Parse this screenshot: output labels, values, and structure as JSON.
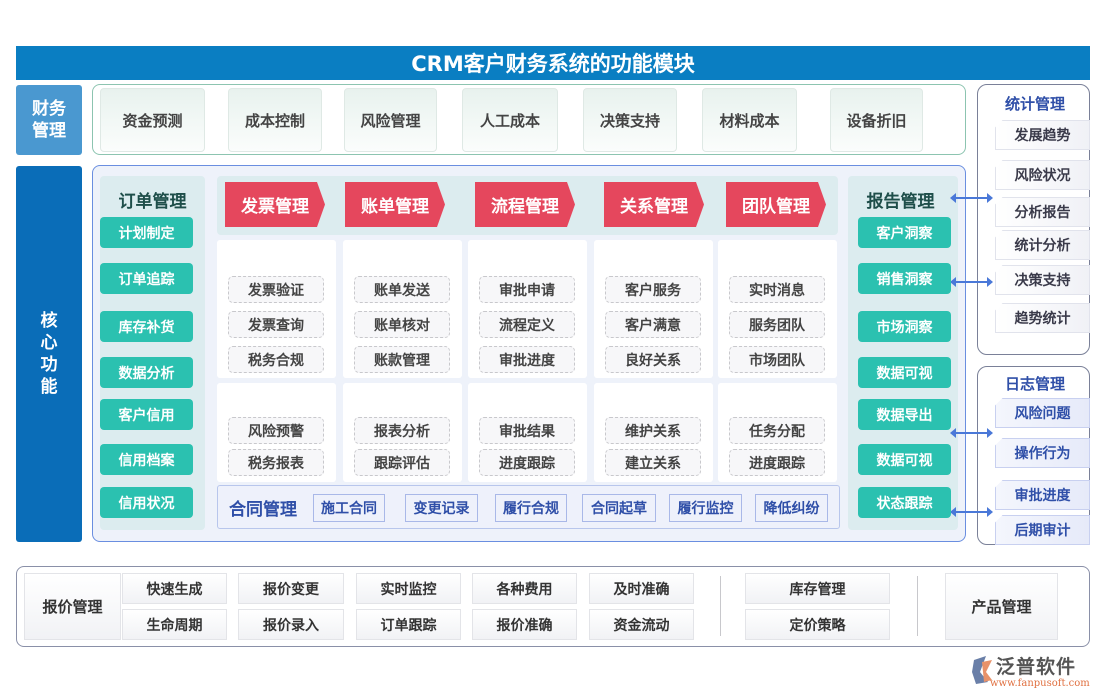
{
  "title": "CRM客户财务系统的功能模块",
  "left_labels": {
    "finance": "财务管理",
    "core": "核心功能"
  },
  "finance_items": [
    "资金预测",
    "成本控制",
    "风险管理",
    "人工成本",
    "决策支持",
    "材料成本",
    "设备折旧"
  ],
  "order": {
    "title": "订单管理",
    "items": [
      "计划制定",
      "订单追踪",
      "库存补货",
      "数据分析",
      "客户信用",
      "信用档案",
      "信用状况"
    ]
  },
  "headers": [
    "发票管理",
    "账单管理",
    "流程管理",
    "关系管理",
    "团队管理"
  ],
  "grid_top": [
    [
      "发票验证",
      "发票查询",
      "税务合规"
    ],
    [
      "账单发送",
      "账单核对",
      "账款管理"
    ],
    [
      "审批申请",
      "流程定义",
      "审批进度"
    ],
    [
      "客户服务",
      "客户满意",
      "良好关系"
    ],
    [
      "实时消息",
      "服务团队",
      "市场团队"
    ]
  ],
  "grid_bottom": [
    [
      "风险预警",
      "税务报表"
    ],
    [
      "报表分析",
      "跟踪评估"
    ],
    [
      "审批结果",
      "进度跟踪"
    ],
    [
      "维护关系",
      "建立关系"
    ],
    [
      "任务分配",
      "进度跟踪"
    ]
  ],
  "contract": {
    "title": "合同管理",
    "items": [
      "施工合同",
      "变更记录",
      "履行合规",
      "合同起草",
      "履行监控",
      "降低纠纷"
    ]
  },
  "report": {
    "title": "报告管理",
    "items": [
      "客户洞察",
      "销售洞察",
      "市场洞察",
      "数据可视",
      "数据导出",
      "数据可视",
      "状态跟踪"
    ]
  },
  "stats": {
    "title": "统计管理",
    "items": [
      "发展趋势",
      "风险状况",
      "分析报告",
      "统计分析",
      "决策支持",
      "趋势统计"
    ]
  },
  "log": {
    "title": "日志管理",
    "items": [
      "风险问题",
      "操作行为",
      "审批进度",
      "后期审计"
    ]
  },
  "bottom": {
    "quote_title": "报价管理",
    "row1": [
      "快速生成",
      "报价变更",
      "实时监控",
      "各种费用",
      "及时准确"
    ],
    "row2": [
      "生命周期",
      "报价录入",
      "订单跟踪",
      "报价准确",
      "资金流动"
    ],
    "inventory": [
      "库存管理",
      "定价策略"
    ],
    "product": "产品管理"
  },
  "logo": {
    "name": "泛普软件",
    "url": "www.fanpusoft.com"
  },
  "colors": {
    "title_bar": "#0a7ec2",
    "teal": "#2bc1b0",
    "red_header": "#e5475d",
    "blue_text": "#2f4fa8"
  }
}
